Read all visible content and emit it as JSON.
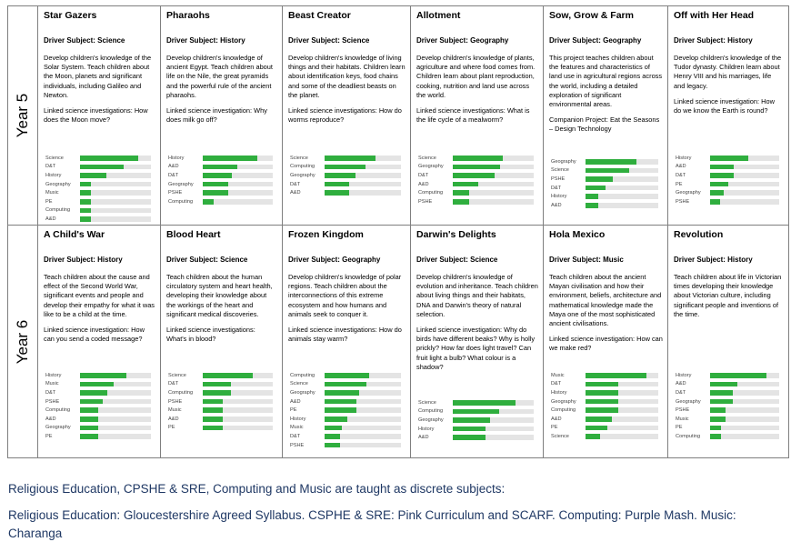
{
  "years": [
    {
      "label": "Year 5",
      "projects": [
        {
          "title": "Star Gazers",
          "driver": "Driver Subject: Science",
          "description": "Develop children's knowledge of the Solar System. Teach children about the Moon, planets and significant individuals, including Galileo and Newton.",
          "linked": "Linked science investigations: How does the Moon move?",
          "companion": "",
          "chart": [
            {
              "subject": "Science",
              "value": 0.82
            },
            {
              "subject": "D&T",
              "value": 0.62
            },
            {
              "subject": "History",
              "value": 0.37
            },
            {
              "subject": "Geography",
              "value": 0.16
            },
            {
              "subject": "Music",
              "value": 0.16
            },
            {
              "subject": "PE",
              "value": 0.16
            },
            {
              "subject": "Computing",
              "value": 0.16
            },
            {
              "subject": "A&D",
              "value": 0.16
            }
          ]
        },
        {
          "title": "Pharaohs",
          "driver": "Driver Subject: History",
          "description": "Develop children's knowledge of ancient Egypt. Teach children about life on the Nile, the great pyramids and the powerful rule of the ancient pharaohs.",
          "linked": "Linked science investigation: Why does milk go off?",
          "companion": "",
          "chart": [
            {
              "subject": "History",
              "value": 0.78
            },
            {
              "subject": "A&D",
              "value": 0.49
            },
            {
              "subject": "D&T",
              "value": 0.42
            },
            {
              "subject": "Geography",
              "value": 0.36
            },
            {
              "subject": "PSHE",
              "value": 0.36
            },
            {
              "subject": "Computing",
              "value": 0.15
            }
          ]
        },
        {
          "title": "Beast Creator",
          "driver": "Driver Subject: Science",
          "description": "Develop children's knowledge of living things and their habitats. Children learn about identification keys, food chains and some of the deadliest beasts on the planet.",
          "linked": "Linked science investigations: How do worms reproduce?",
          "companion": "",
          "chart": [
            {
              "subject": "Science",
              "value": 0.67
            },
            {
              "subject": "Computing",
              "value": 0.54
            },
            {
              "subject": "Geography",
              "value": 0.41
            },
            {
              "subject": "D&T",
              "value": 0.32
            },
            {
              "subject": "A&D",
              "value": 0.32
            }
          ]
        },
        {
          "title": "Allotment",
          "driver": "Driver Subject: Geography",
          "description": "Develop children's knowledge of plants, agriculture and where food comes from. Children learn about plant reproduction, cooking, nutrition and land use across the world.",
          "linked": "Linked science investigations: What is the life cycle of a mealworm?",
          "companion": "",
          "chart": [
            {
              "subject": "Science",
              "value": 0.62
            },
            {
              "subject": "Geography",
              "value": 0.58
            },
            {
              "subject": "D&T",
              "value": 0.52
            },
            {
              "subject": "A&D",
              "value": 0.32
            },
            {
              "subject": "Computing",
              "value": 0.2
            },
            {
              "subject": "PSHE",
              "value": 0.2
            }
          ]
        },
        {
          "title": "Sow, Grow & Farm",
          "driver": "Driver Subject: Geography",
          "description": "This project teaches children about the features and characteristics of land use in agricultural regions across the world, including a detailed exploration of significant environmental areas.",
          "linked": "",
          "companion": "Companion Project: Eat the Seasons – Design Technology",
          "chart": [
            {
              "subject": "Geography",
              "value": 0.7
            },
            {
              "subject": "Science",
              "value": 0.6
            },
            {
              "subject": "PSHE",
              "value": 0.37
            },
            {
              "subject": "D&T",
              "value": 0.28
            },
            {
              "subject": "History",
              "value": 0.18
            },
            {
              "subject": "A&D",
              "value": 0.18
            }
          ]
        },
        {
          "title": "Off with Her Head",
          "driver": "Driver Subject: History",
          "description": "Develop children's knowledge of the Tudor dynasty. Children learn about Henry VIII and his marriages, life and legacy.",
          "linked": "Linked science investigation: How do we know the Earth is round?",
          "companion": "",
          "chart": [
            {
              "subject": "History",
              "value": 0.55
            },
            {
              "subject": "A&D",
              "value": 0.34
            },
            {
              "subject": "D&T",
              "value": 0.34
            },
            {
              "subject": "PE",
              "value": 0.26
            },
            {
              "subject": "Geography",
              "value": 0.2
            },
            {
              "subject": "PSHE",
              "value": 0.15
            }
          ]
        }
      ]
    },
    {
      "label": "Year 6",
      "projects": [
        {
          "title": "A Child's War",
          "driver": "Driver Subject: History",
          "description": "Teach children about the cause and effect of the Second World War, significant events and people and develop their empathy for what it was like to be a child at the time.",
          "linked": "Linked science investigation: How can you send a coded message?",
          "companion": "",
          "chart": [
            {
              "subject": "History",
              "value": 0.65
            },
            {
              "subject": "Music",
              "value": 0.47
            },
            {
              "subject": "D&T",
              "value": 0.39
            },
            {
              "subject": "PSHE",
              "value": 0.32
            },
            {
              "subject": "Computing",
              "value": 0.26
            },
            {
              "subject": "A&D",
              "value": 0.26
            },
            {
              "subject": "Geography",
              "value": 0.26
            },
            {
              "subject": "PE",
              "value": 0.26
            }
          ]
        },
        {
          "title": "Blood Heart",
          "driver": "Driver Subject: Science",
          "description": "Teach children about the human circulatory system and heart health, developing their knowledge about the workings of the heart and significant medical discoveries.",
          "linked": "Linked science investigations: What's in blood?",
          "companion": "",
          "chart": [
            {
              "subject": "Science",
              "value": 0.72
            },
            {
              "subject": "D&T",
              "value": 0.4
            },
            {
              "subject": "Computing",
              "value": 0.4
            },
            {
              "subject": "PSHE",
              "value": 0.29
            },
            {
              "subject": "Music",
              "value": 0.29
            },
            {
              "subject": "A&D",
              "value": 0.29
            },
            {
              "subject": "PE",
              "value": 0.29
            }
          ]
        },
        {
          "title": "Frozen Kingdom",
          "driver": "Driver Subject: Geography",
          "description": "Develop children's knowledge of polar regions. Teach children about the interconnections of this extreme ecosystem and how humans and animals seek to conquer it.",
          "linked": "Linked science investigations: How do animals stay warm?",
          "companion": "",
          "chart": [
            {
              "subject": "Computing",
              "value": 0.58
            },
            {
              "subject": "Science",
              "value": 0.55
            },
            {
              "subject": "Geography",
              "value": 0.45
            },
            {
              "subject": "A&D",
              "value": 0.42
            },
            {
              "subject": "PE",
              "value": 0.42
            },
            {
              "subject": "History",
              "value": 0.3
            },
            {
              "subject": "Music",
              "value": 0.23
            },
            {
              "subject": "D&T",
              "value": 0.2
            },
            {
              "subject": "PSHE",
              "value": 0.2
            }
          ]
        },
        {
          "title": "Darwin's Delights",
          "driver": "Driver Subject: Science",
          "description": "Develop children's knowledge of evolution and inheritance. Teach children about living things and their habitats, DNA and Darwin's theory of natural selection.",
          "linked": "Linked science investigation: Why do birds have different beaks? Why is holly prickly? How far does light travel? Can fruit light a bulb? What colour is a shadow?",
          "companion": "",
          "chart": [
            {
              "subject": "Science",
              "value": 0.78
            },
            {
              "subject": "Computing",
              "value": 0.57
            },
            {
              "subject": "Geography",
              "value": 0.46
            },
            {
              "subject": "History",
              "value": 0.4
            },
            {
              "subject": "A&D",
              "value": 0.4
            }
          ]
        },
        {
          "title": "Hola Mexico",
          "driver": "Driver Subject: Music",
          "description": "Teach children about the ancient Mayan civilisation and how their environment, beliefs, architecture and mathematical knowledge made the Maya one of the most sophisticated ancient civilisations.",
          "linked": "Linked science investigation: How can we make red?",
          "companion": "",
          "chart": [
            {
              "subject": "Music",
              "value": 0.84
            },
            {
              "subject": "D&T",
              "value": 0.45
            },
            {
              "subject": "History",
              "value": 0.45
            },
            {
              "subject": "Geography",
              "value": 0.45
            },
            {
              "subject": "Computing",
              "value": 0.45
            },
            {
              "subject": "A&D",
              "value": 0.36
            },
            {
              "subject": "PE",
              "value": 0.3
            },
            {
              "subject": "Science",
              "value": 0.2
            }
          ]
        },
        {
          "title": "Revolution",
          "driver": "Driver Subject: History",
          "description": "Teach children about life in Victorian times developing their knowledge about Victorian culture, including significant people and inventions of the time.",
          "linked": "",
          "companion": "",
          "chart": [
            {
              "subject": "History",
              "value": 0.82
            },
            {
              "subject": "A&D",
              "value": 0.4
            },
            {
              "subject": "D&T",
              "value": 0.33
            },
            {
              "subject": "Geography",
              "value": 0.33
            },
            {
              "subject": "PSHE",
              "value": 0.23
            },
            {
              "subject": "Music",
              "value": 0.23
            },
            {
              "subject": "PE",
              "value": 0.16
            },
            {
              "subject": "Computing",
              "value": 0.16
            }
          ]
        }
      ]
    }
  ],
  "footer": {
    "line1": "Religious Education, CPSHE & SRE, Computing and Music are taught as discrete subjects:",
    "line2": "Religious Education: Gloucestershire Agreed Syllabus.  CSPHE & SRE: Pink Curriculum and SCARF.  Computing: Purple Mash. Music: Charanga"
  },
  "colors": {
    "bar": "#2fae3e",
    "track": "#e4e4e4",
    "footer_text": "#1f3864"
  }
}
